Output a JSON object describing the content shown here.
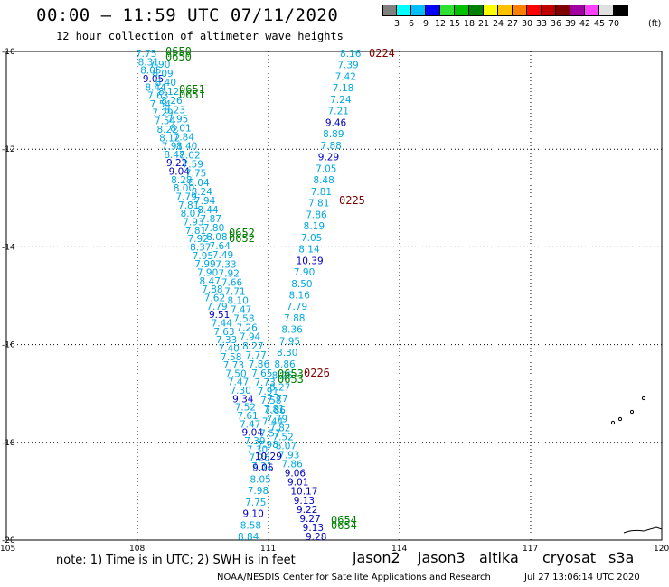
{
  "header": {
    "title": "00:00 – 11:59 UTC 07/11/2020",
    "subtitle": "12 hour collection of altimeter wave heights"
  },
  "legend": {
    "colors": [
      "#808080",
      "#00ffff",
      "#00bfff",
      "#0000ff",
      "#30e030",
      "#00c000",
      "#008000",
      "#ffff00",
      "#ffc000",
      "#ff8000",
      "#ff0000",
      "#c00000",
      "#800000",
      "#a000a0",
      "#ff40ff",
      "#e0e0e0",
      "#000000"
    ],
    "labels": [
      "3",
      "6",
      "9",
      "12",
      "15",
      "18",
      "21",
      "24",
      "27",
      "30",
      "33",
      "36",
      "39",
      "42",
      "45",
      "70"
    ],
    "unit": "(ft)"
  },
  "map": {
    "lat_ticks": [
      "-10",
      "-12",
      "-14",
      "-16",
      "-18",
      "-20"
    ],
    "lon_ticks": [
      "105",
      "108",
      "111",
      "114",
      "117",
      "120"
    ],
    "line_color": "#000000",
    "grid_color": "#000000"
  },
  "tracks": [
    {
      "name": "left-track-a",
      "color_light": "#00a8e0",
      "color_dark": "#0000c0",
      "values": [
        "7.75",
        "8.31",
        "8.05",
        "9.05",
        "8.44",
        "7.63",
        "7.54",
        "7.29",
        "7.54",
        "8.22",
        "8.12",
        "7.91",
        "8.47",
        "9.22",
        "9.04",
        "8.28",
        "8.00",
        "7.79",
        "7.81",
        "8.07",
        "7.93",
        "7.81",
        "7.92",
        "8.37",
        "7.95",
        "7.99",
        "7.90",
        "8.47",
        "7.88",
        "7.62",
        "7.79",
        "9.51",
        "7.44",
        "7.63",
        "7.33",
        "7.40",
        "7.58",
        "7.73",
        "7.50",
        "7.47",
        "7.30",
        "9.34",
        "7.52",
        "7.61",
        "7.47",
        "9.04",
        "7.39",
        "7.30",
        "7.26",
        "7.31"
      ]
    },
    {
      "name": "left-track-b",
      "color_light": "#00a8e0",
      "color_dark": "#0000c0",
      "values": [
        "7.90",
        "8.09",
        "8.40",
        "8.12",
        "8.26",
        "8.23",
        "7.95",
        "8.01",
        "7.84",
        "8.40",
        "8.02",
        "7.59",
        "7.75",
        "8.04",
        "8.24",
        "7.94",
        "8.44",
        "7.87",
        "7.80",
        "8.08",
        "7.64",
        "7.49",
        "7.33",
        "7.92",
        "7.66",
        "7.71",
        "8.10",
        "7.47",
        "7.58",
        "7.26",
        "7.94",
        "8.27",
        "7.77",
        "7.86",
        "7.65",
        "7.73",
        "7.91",
        "7.58",
        "7.81",
        "7.79",
        "7.82",
        "7.52",
        "8.07",
        "7.93",
        "7.86",
        "9.06",
        "9.01",
        "10.17",
        "9.13",
        "9.22",
        "9.27",
        "9.13",
        "9.28"
      ]
    },
    {
      "name": "right-track",
      "color_light": "#00a8e0",
      "color_dark": "#0000c0",
      "values": [
        "8.16",
        "7.39",
        "7.42",
        "7.18",
        "7.24",
        "7.21",
        "9.46",
        "8.89",
        "7.88",
        "9.29",
        "7.05",
        "8.48",
        "7.81",
        "7.81",
        "7.86",
        "8.19",
        "7.05",
        "8.14",
        "10.39",
        "7.90",
        "8.50",
        "8.16",
        "7.79",
        "7.88",
        "8.36",
        "7.95",
        "8.30",
        "8.86",
        "8.25",
        "8.27",
        "7.77",
        "7.86",
        "7.44",
        "7.57",
        "7.98",
        "10.29",
        "9.06",
        "8.05",
        "7.98",
        "7.75",
        "9.10",
        "8.58",
        "8.84"
      ]
    }
  ],
  "pass_labels": [
    {
      "text": "0650",
      "color": "#008000"
    },
    {
      "text": "0651",
      "color": "#008000"
    },
    {
      "text": "0652",
      "color": "#008000"
    },
    {
      "text": "0653",
      "color": "#008000"
    },
    {
      "text": "0654",
      "color": "#008000"
    },
    {
      "text": "0224",
      "color": "#800000"
    },
    {
      "text": "0225",
      "color": "#800000"
    },
    {
      "text": "0226",
      "color": "#800000"
    }
  ],
  "footer": {
    "note": "note: 1) Time is in UTC; 2) SWH is in feet",
    "missions": [
      {
        "label": "jason2",
        "color": "#0000ff"
      },
      {
        "label": "jason3",
        "color": "#008000"
      },
      {
        "label": "altika",
        "color": "#ff9000"
      },
      {
        "label": "cryosat",
        "color": "#ff0000"
      },
      {
        "label": "s3a",
        "color": "#800000"
      }
    ],
    "credit": "NOAA/NESDIS Center for Satellite Applications and Research",
    "timestamp": "Jul 27 13:06:14 UTC 2020"
  }
}
